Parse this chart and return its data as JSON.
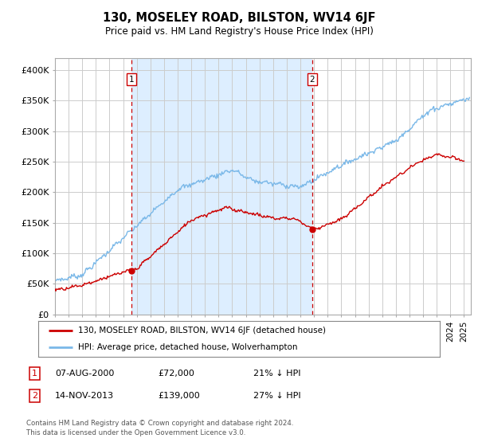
{
  "title": "130, MOSELEY ROAD, BILSTON, WV14 6JF",
  "subtitle": "Price paid vs. HM Land Registry's House Price Index (HPI)",
  "ylabel_ticks": [
    "£0",
    "£50K",
    "£100K",
    "£150K",
    "£200K",
    "£250K",
    "£300K",
    "£350K",
    "£400K"
  ],
  "ylim": [
    0,
    420000
  ],
  "xlim_start": 1995.0,
  "xlim_end": 2025.5,
  "sale1_x": 2000.6,
  "sale1_y": 72000,
  "sale1_label": "1",
  "sale2_x": 2013.87,
  "sale2_y": 139000,
  "sale2_label": "2",
  "vline1_x": 2000.6,
  "vline2_x": 2013.87,
  "hpi_color": "#7ab8e8",
  "sale_color": "#cc0000",
  "vline_color": "#cc0000",
  "shade_color": "#ddeeff",
  "bg_color": "#ffffff",
  "grid_color": "#cccccc",
  "legend_label_sale": "130, MOSELEY ROAD, BILSTON, WV14 6JF (detached house)",
  "legend_label_hpi": "HPI: Average price, detached house, Wolverhampton",
  "annotation1_date": "07-AUG-2000",
  "annotation1_price": "£72,000",
  "annotation1_pct": "21% ↓ HPI",
  "annotation2_date": "14-NOV-2013",
  "annotation2_price": "£139,000",
  "annotation2_pct": "27% ↓ HPI",
  "footer": "Contains HM Land Registry data © Crown copyright and database right 2024.\nThis data is licensed under the Open Government Licence v3.0."
}
